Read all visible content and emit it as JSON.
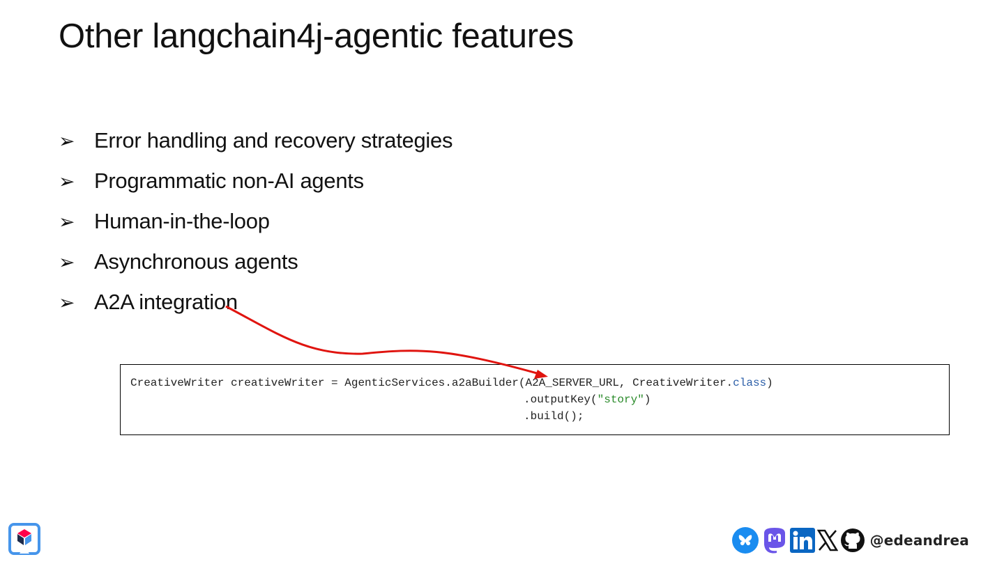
{
  "slide": {
    "title": "Other langchain4j-agentic features",
    "bullet_marker": "➢",
    "bullets": [
      "Error handling and recovery strategies",
      "Programmatic non-AI agents",
      "Human-in-the-loop",
      "Asynchronous agents",
      "A2A integration"
    ]
  },
  "code": {
    "line1_prefix": "CreativeWriter creativeWriter = AgenticServices.a2aBuilder(A2A_SERVER_URL, CreativeWriter.",
    "line1_keyword": "class",
    "line1_suffix": ")",
    "line2_prefix": ".outputKey(",
    "line2_string": "\"story\"",
    "line2_suffix": ")",
    "line3": ".build();"
  },
  "footer": {
    "handle": "@edeandrea",
    "icons": [
      "bluesky-icon",
      "mastodon-icon",
      "linkedin-icon",
      "x-icon",
      "github-icon"
    ]
  },
  "colors": {
    "arrow": "#e0140f",
    "keyword": "#2b5ea8",
    "string": "#2a8a2a",
    "bluesky": "#1a8cf0",
    "mastodon": "#6a55e8",
    "linkedin": "#0a66c2"
  }
}
